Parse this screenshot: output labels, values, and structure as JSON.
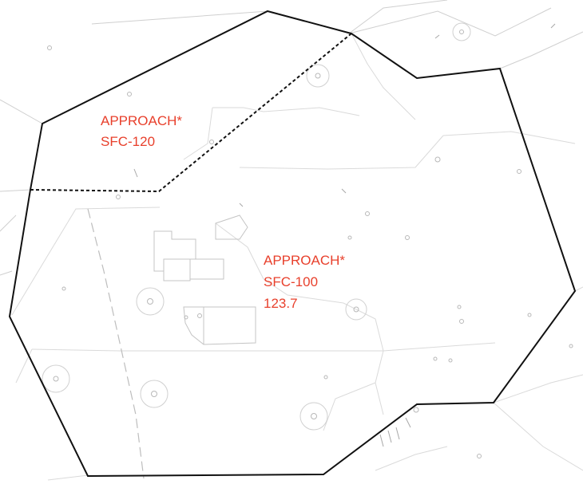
{
  "map": {
    "colors": {
      "boundary": "#111111",
      "label": "#e8402c",
      "background": "#ffffff",
      "basemap": "#cfcfcf"
    },
    "areas": [
      {
        "id": "upper",
        "lines": [
          "APPROACH*",
          "SFC-120"
        ]
      },
      {
        "id": "lower",
        "lines": [
          "APPROACH*",
          "SFC-100",
          "123.7"
        ]
      }
    ]
  }
}
